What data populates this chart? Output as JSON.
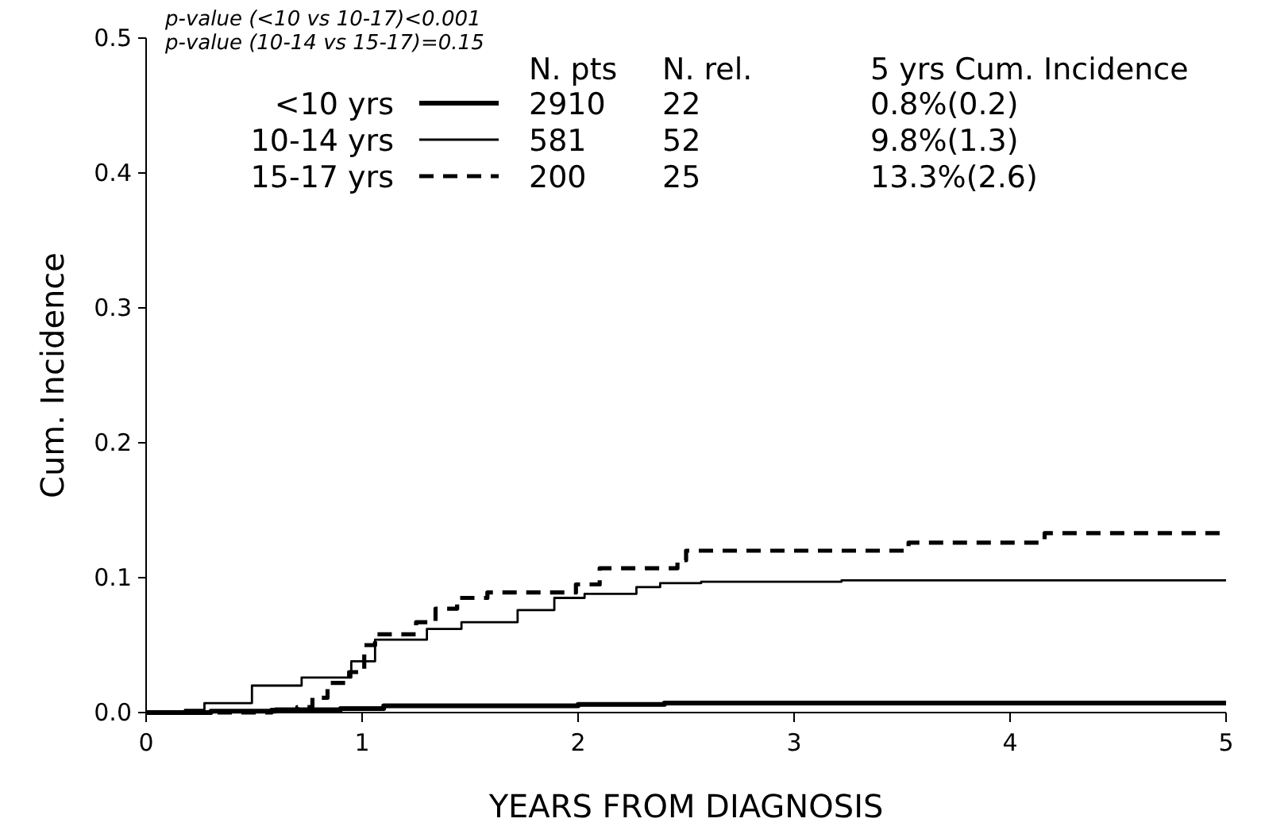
{
  "chart_data": {
    "type": "step",
    "xlabel": "YEARS FROM DIAGNOSIS",
    "ylabel": "Cum. Incidence",
    "xlim": [
      0,
      5
    ],
    "ylim": [
      0,
      0.5
    ],
    "xticks": [
      0,
      1,
      2,
      3,
      4,
      5
    ],
    "yticks": [
      {
        "value": 0,
        "label": "0.0"
      },
      0.1,
      0.2,
      0.3,
      0.4,
      0.5
    ],
    "legend": "top",
    "grid": false,
    "annotations": [
      "p-value (<10 vs 10-17)<0.001",
      "p-value (10-14 vs 15-17)=0.15",
      "N. pts",
      "N. rel.",
      "5 yrs Cum. Incidence",
      "2910",
      "22",
      "0.8%(0.2)",
      "581",
      "52",
      "9.8%(1.3)",
      "200",
      "25",
      "13.3%(2.6)"
    ],
    "series": [
      {
        "name": "<10 yrs",
        "color": "#000000",
        "line_style": "solid",
        "x": [
          0,
          0.3,
          0.6,
          0.9,
          1.1,
          1.5,
          2.0,
          2.4,
          5
        ],
        "values": [
          0,
          0.001,
          0.002,
          0.003,
          0.005,
          0.005,
          0.006,
          0.007,
          0.007
        ]
      },
      {
        "name": "10-14 yrs",
        "color": "#000000",
        "line_style": "solid",
        "x": [
          0,
          0.18,
          0.27,
          0.49,
          0.72,
          0.95,
          1.06,
          1.3,
          1.46,
          1.72,
          1.89,
          2.03,
          2.27,
          2.38,
          2.57,
          3.22,
          5
        ],
        "values": [
          0,
          0.002,
          0.007,
          0.02,
          0.026,
          0.038,
          0.054,
          0.062,
          0.067,
          0.076,
          0.085,
          0.088,
          0.093,
          0.096,
          0.097,
          0.098,
          0.098
        ]
      },
      {
        "name": "15-17 yrs",
        "color": "#000000",
        "line_style": "dashed",
        "x": [
          0,
          0.58,
          0.7,
          0.77,
          0.84,
          0.94,
          1.01,
          1.06,
          1.25,
          1.34,
          1.44,
          1.58,
          1.99,
          2.1,
          2.46,
          2.5,
          3.53,
          4.16,
          5
        ],
        "values": [
          0,
          0.002,
          0.004,
          0.011,
          0.022,
          0.03,
          0.05,
          0.058,
          0.067,
          0.077,
          0.085,
          0.089,
          0.095,
          0.107,
          0.113,
          0.12,
          0.126,
          0.133,
          0.133
        ]
      }
    ]
  }
}
